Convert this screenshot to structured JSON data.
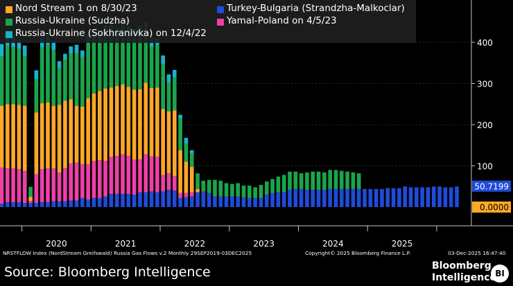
{
  "chart_data": {
    "type": "bar",
    "stacked": true,
    "xlabel": "",
    "ylabel": "",
    "ylim": [
      -48,
      500
    ],
    "yticks": [
      100,
      200,
      300,
      400
    ],
    "year_labels": [
      "2020",
      "2021",
      "2022",
      "2023",
      "2024",
      "2025"
    ],
    "series": [
      {
        "name": "Turkey-Bulgaria (Strandzha-Malkoclar)",
        "color": "#1f4bd8",
        "values": [
          8,
          12,
          12,
          12,
          10,
          10,
          10,
          12,
          12,
          14,
          14,
          14,
          16,
          16,
          22,
          18,
          22,
          22,
          26,
          32,
          32,
          32,
          32,
          30,
          36,
          36,
          38,
          36,
          38,
          42,
          40,
          22,
          24,
          26,
          36,
          38,
          34,
          26,
          26,
          26,
          26,
          26,
          24,
          22,
          22,
          22,
          30,
          34,
          36,
          36,
          42,
          44,
          44,
          42,
          42,
          42,
          42,
          44,
          44,
          44,
          44,
          44,
          44,
          44,
          44,
          44,
          44,
          46,
          46,
          46,
          50,
          48,
          48,
          48,
          48,
          50,
          50,
          48,
          48,
          50
        ]
      },
      {
        "name": "Yamal-Poland on 4/5/23",
        "color": "#ee3fa8",
        "values": [
          88,
          82,
          82,
          80,
          78,
          5,
          70,
          80,
          82,
          80,
          70,
          80,
          90,
          92,
          82,
          86,
          90,
          92,
          86,
          90,
          92,
          96,
          92,
          85,
          80,
          92,
          85,
          86,
          40,
          40,
          35,
          12,
          10,
          10,
          0,
          0,
          0,
          0,
          0,
          0,
          0,
          0,
          0,
          0,
          0,
          0,
          0,
          0,
          0,
          0,
          0,
          0,
          0,
          0,
          0,
          0,
          0,
          0,
          0,
          0,
          0,
          0,
          0,
          0,
          0,
          0,
          0,
          0,
          0,
          0,
          0,
          0,
          0,
          0,
          0,
          0,
          0,
          0,
          0,
          0
        ]
      },
      {
        "name": "Nord Stream 1 on 8/30/23",
        "color": "#ffa727",
        "values": [
          150,
          156,
          156,
          156,
          158,
          10,
          150,
          160,
          160,
          152,
          164,
          164,
          156,
          138,
          140,
          160,
          164,
          168,
          176,
          168,
          170,
          170,
          168,
          170,
          170,
          174,
          166,
          168,
          160,
          150,
          160,
          104,
          76,
          62,
          8,
          0,
          0,
          0,
          0,
          0,
          0,
          0,
          0,
          0,
          0,
          0,
          0,
          0,
          0,
          0,
          0,
          0,
          0,
          0,
          0,
          0,
          0,
          0,
          0,
          0,
          0,
          0,
          0,
          0,
          0,
          0,
          0,
          0,
          0,
          0,
          0,
          0,
          0,
          0,
          0,
          0,
          0,
          0,
          0,
          0
        ]
      },
      {
        "name": "Russia-Ukraine (Sudzha)",
        "color": "#1aa54b",
        "values": [
          120,
          142,
          138,
          136,
          120,
          24,
          80,
          135,
          140,
          135,
          90,
          100,
          110,
          128,
          120,
          138,
          130,
          126,
          130,
          130,
          118,
          126,
          124,
          125,
          130,
          134,
          100,
          104,
          110,
          70,
          80,
          76,
          44,
          32,
          38,
          26,
          32,
          40,
          38,
          32,
          30,
          32,
          28,
          30,
          26,
          32,
          32,
          34,
          38,
          42,
          44,
          42,
          38,
          42,
          44,
          44,
          42,
          46,
          46,
          44,
          42,
          40,
          38,
          0,
          0,
          0,
          0,
          0,
          0,
          0,
          0,
          0,
          0,
          0,
          0,
          0,
          0,
          0,
          0,
          0
        ]
      },
      {
        "name": "Russia-Ukraine (Sokhranivka) on 12/4/22",
        "color": "#16b3cc",
        "values": [
          30,
          30,
          26,
          22,
          26,
          0,
          22,
          24,
          24,
          22,
          16,
          14,
          18,
          20,
          16,
          16,
          14,
          12,
          22,
          22,
          24,
          22,
          24,
          22,
          24,
          12,
          20,
          16,
          20,
          20,
          18,
          10,
          14,
          8,
          0,
          0,
          0,
          0,
          0,
          0,
          0,
          0,
          0,
          0,
          0,
          0,
          0,
          0,
          0,
          0,
          0,
          0,
          0,
          0,
          0,
          0,
          0,
          0,
          0,
          0,
          0,
          0,
          0,
          0,
          0,
          0,
          0,
          0,
          0,
          0,
          0,
          0,
          0,
          0,
          0,
          0,
          0,
          0,
          0,
          0
        ]
      }
    ],
    "last_value_label": "50.7199",
    "zero_value_label": "0.0000"
  },
  "legend": [
    {
      "label": "Nord Stream 1 on 8/30/23",
      "color": "#ffa727"
    },
    {
      "label": "Turkey-Bulgaria (Strandzha-Malkoclar)",
      "color": "#1f4bd8"
    },
    {
      "label": "Russia-Ukraine (Sudzha)",
      "color": "#1aa54b"
    },
    {
      "label": "Yamal-Poland on 4/5/23",
      "color": "#ee3fa8"
    },
    {
      "label": "Russia-Ukraine (Sokhranivka) on 12/4/22",
      "color": "#16b3cc"
    }
  ],
  "footer": {
    "index": "NRSTFLOW Index (NordStream Greifswald) Russia Gas Flows v.2 Monthly 29SEP2019-03DEC2025",
    "copyright": "Copyright© 2025 Bloomberg Finance L.P.",
    "timestamp": "03-Dec-2025 16:47:40"
  },
  "source": "Source: Bloomberg Intelligence",
  "brand": {
    "line1": "Bloomberg",
    "line2": "Intelligence",
    "badge": "BI"
  }
}
